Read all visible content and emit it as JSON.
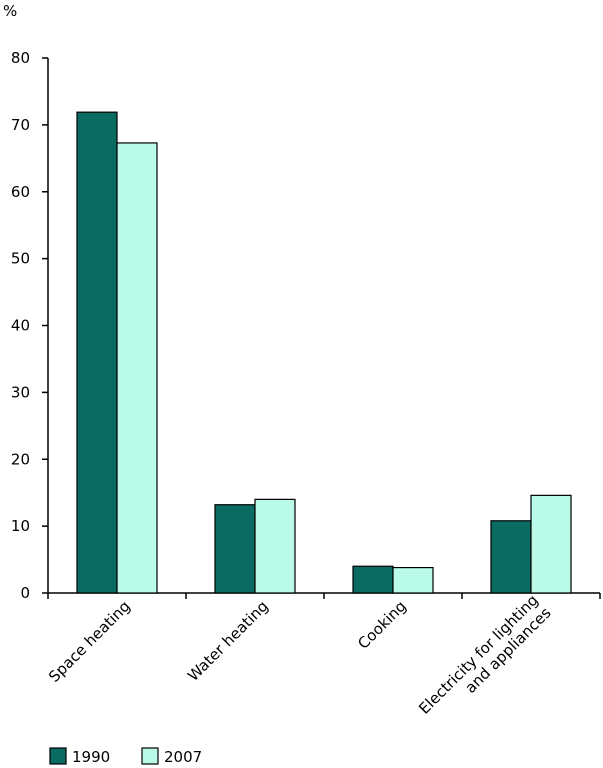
{
  "chart_data": {
    "type": "bar",
    "ylabel": "%",
    "ylim": [
      0,
      80
    ],
    "yticks": [
      0,
      10,
      20,
      30,
      40,
      50,
      60,
      70,
      80
    ],
    "categories": [
      [
        "Space heating"
      ],
      [
        "Water heating"
      ],
      [
        "Cooking"
      ],
      [
        "Electricity for lighting",
        "and appliances"
      ]
    ],
    "series": [
      {
        "name": "1990",
        "color": "#0a6b62",
        "values": [
          71.9,
          13.2,
          4.0,
          10.8
        ]
      },
      {
        "name": "2007",
        "color": "#b9fbe8",
        "values": [
          67.3,
          14.0,
          3.8,
          14.6
        ]
      }
    ],
    "grid": false,
    "legend": "bottom-left"
  }
}
